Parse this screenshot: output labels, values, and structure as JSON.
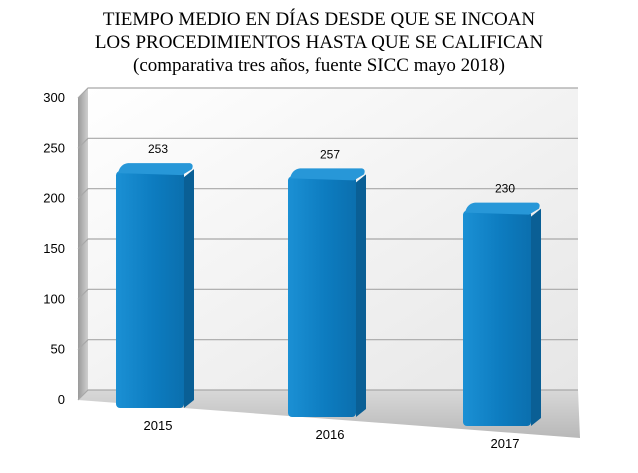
{
  "chart_data": {
    "type": "bar",
    "title": "TIEMPO MEDIO EN DÍAS DESDE QUE SE INCOAN",
    "title_line2": "LOS PROCEDIMIENTOS HASTA QUE SE CALIFICAN",
    "subtitle": "(comparativa tres años, fuente SICC mayo 2018)",
    "categories": [
      "2015",
      "2016",
      "2017"
    ],
    "values": [
      253,
      257,
      230
    ],
    "data_labels": [
      "253",
      "257",
      "230"
    ],
    "y_ticks": [
      "0",
      "50",
      "100",
      "150",
      "200",
      "250",
      "300"
    ],
    "ylim": [
      0,
      300
    ],
    "xlabel": "",
    "ylabel": "",
    "grid": true,
    "legend": "none",
    "colors": {
      "bar": "#0f7fc4",
      "bar_side": "#0a5f95",
      "bar_top": "#2797d8",
      "wall": "#eeeeee",
      "side_wall": "#999999",
      "floor": "#c0c0c0",
      "grid": "#a8a8a8"
    }
  }
}
